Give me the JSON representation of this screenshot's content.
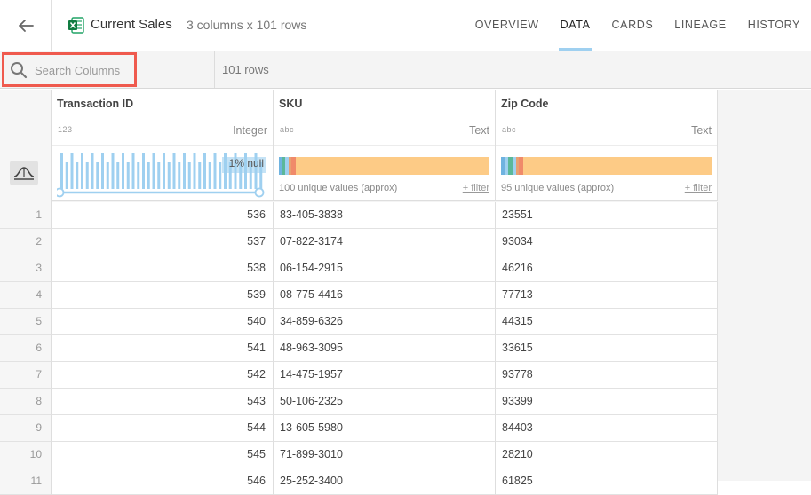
{
  "header": {
    "title": "Current Sales",
    "subtitle": "3 columns x 101 rows",
    "tabs": [
      {
        "label": "OVERVIEW",
        "active": false
      },
      {
        "label": "DATA",
        "active": true
      },
      {
        "label": "CARDS",
        "active": false
      },
      {
        "label": "LINEAGE",
        "active": false
      },
      {
        "label": "HISTORY",
        "active": false
      }
    ]
  },
  "toolbar": {
    "search_placeholder": "Search Columns",
    "row_count": "101 rows"
  },
  "columns": [
    {
      "name": "Transaction ID",
      "type_abbr": "123",
      "type": "Integer",
      "null_label": "1% null"
    },
    {
      "name": "SKU",
      "type_abbr": "abc",
      "type": "Text",
      "unique": "100 unique values (approx)",
      "filter": "+ filter"
    },
    {
      "name": "Zip Code",
      "type_abbr": "abc",
      "type": "Text",
      "unique": "95 unique values (approx)",
      "filter": "+ filter"
    }
  ],
  "rows": [
    {
      "n": "1",
      "id": "536",
      "sku": "83-405-3838",
      "zip": "23551"
    },
    {
      "n": "2",
      "id": "537",
      "sku": "07-822-3174",
      "zip": "93034"
    },
    {
      "n": "3",
      "id": "538",
      "sku": "06-154-2915",
      "zip": "46216"
    },
    {
      "n": "4",
      "id": "539",
      "sku": "08-775-4416",
      "zip": "77713"
    },
    {
      "n": "5",
      "id": "540",
      "sku": "34-859-6326",
      "zip": "44315"
    },
    {
      "n": "6",
      "id": "541",
      "sku": "48-963-3095",
      "zip": "33615"
    },
    {
      "n": "7",
      "id": "542",
      "sku": "14-475-1957",
      "zip": "93778"
    },
    {
      "n": "8",
      "id": "543",
      "sku": "50-106-2325",
      "zip": "93399"
    },
    {
      "n": "9",
      "id": "544",
      "sku": "13-605-5980",
      "zip": "84403"
    },
    {
      "n": "10",
      "id": "545",
      "sku": "71-899-3010",
      "zip": "28210"
    },
    {
      "n": "11",
      "id": "546",
      "sku": "25-252-3400",
      "zip": "61825"
    }
  ],
  "colors": {
    "accent_tab": "#9fd0f0",
    "search_highlight": "#ef5a4e",
    "histogram": "#9fd0f0",
    "category_main": "#fdcb86",
    "category_segments": [
      "#6fb3e0",
      "#5bb89a",
      "#e8a070",
      "#f08a6a"
    ]
  }
}
